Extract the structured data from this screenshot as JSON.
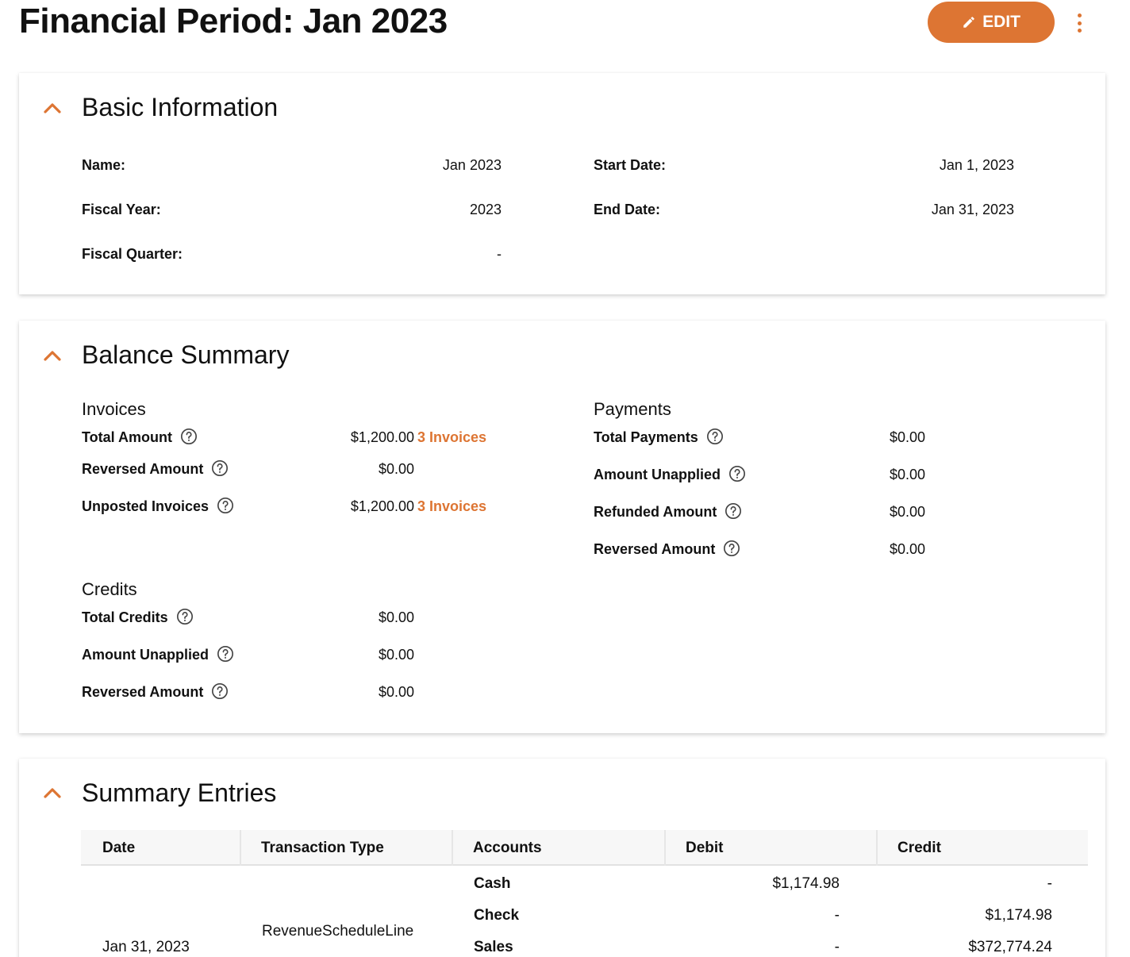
{
  "header": {
    "title": "Financial Period: Jan 2023",
    "edit_label": "EDIT"
  },
  "colors": {
    "accent": "#dd7533",
    "text": "#111111",
    "card_shadow": "#cccccc"
  },
  "basic": {
    "title": "Basic Information",
    "name_label": "Name:",
    "name_value": "Jan 2023",
    "fiscal_year_label": "Fiscal Year:",
    "fiscal_year_value": "2023",
    "fiscal_quarter_label": "Fiscal Quarter:",
    "fiscal_quarter_value": "-",
    "start_date_label": "Start Date:",
    "start_date_value": "Jan 1, 2023",
    "end_date_label": "End Date:",
    "end_date_value": "Jan 31, 2023"
  },
  "balance": {
    "title": "Balance Summary",
    "invoices": {
      "title": "Invoices",
      "rows": [
        {
          "label": "Total Amount",
          "value": "$1,200.00",
          "link": "3 Invoices"
        },
        {
          "label": "Reversed Amount",
          "value": "$0.00",
          "link": ""
        },
        {
          "label": "Unposted Invoices",
          "value": "$1,200.00",
          "link": "3 Invoices"
        }
      ]
    },
    "credits": {
      "title": "Credits",
      "rows": [
        {
          "label": "Total Credits",
          "value": "$0.00"
        },
        {
          "label": "Amount Unapplied",
          "value": "$0.00"
        },
        {
          "label": "Reversed Amount",
          "value": "$0.00"
        }
      ]
    },
    "payments": {
      "title": "Payments",
      "rows": [
        {
          "label": "Total Payments",
          "value": "$0.00"
        },
        {
          "label": "Amount Unapplied",
          "value": "$0.00"
        },
        {
          "label": "Refunded Amount",
          "value": "$0.00"
        },
        {
          "label": "Reversed Amount",
          "value": "$0.00"
        }
      ]
    }
  },
  "entries": {
    "title": "Summary Entries",
    "columns": [
      "Date",
      "Transaction Type",
      "Accounts",
      "Debit",
      "Credit"
    ],
    "group": {
      "date": "Jan 31, 2023",
      "transaction_type": "RevenueScheduleLine",
      "lines": [
        {
          "account": "Cash",
          "debit": "$1,174.98",
          "credit": "-"
        },
        {
          "account": "Check",
          "debit": "-",
          "credit": "$1,174.98"
        },
        {
          "account": "Sales",
          "debit": "-",
          "credit": "$372,774.24"
        }
      ]
    }
  }
}
